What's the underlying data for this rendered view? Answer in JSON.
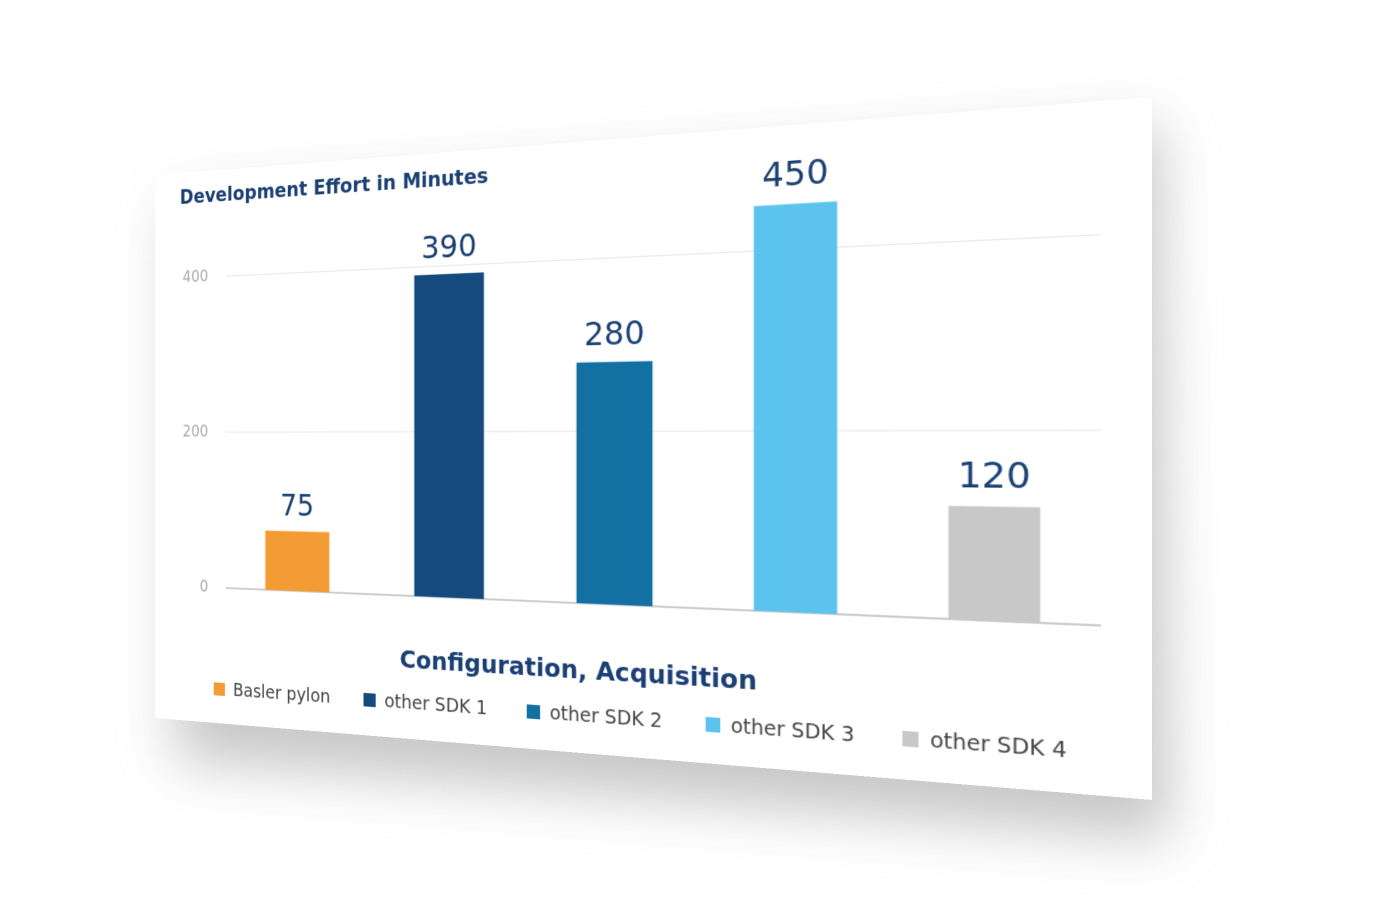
{
  "chart_data": {
    "type": "bar",
    "title": "Development Effort in Minutes",
    "x_label": "Configuration, Acquisition",
    "ylim": [
      0,
      480
    ],
    "yticks": [
      0,
      200,
      400
    ],
    "grid": true,
    "series": [
      {
        "name": "Basler pylon",
        "color": "#f39c33",
        "values": [
          75
        ]
      },
      {
        "name": "other SDK 1",
        "color": "#154a7e",
        "values": [
          390
        ]
      },
      {
        "name": "other SDK 2",
        "color": "#1270a3",
        "values": [
          280
        ]
      },
      {
        "name": "other SDK 3",
        "color": "#5bc3ec",
        "values": [
          450
        ]
      },
      {
        "name": "other SDK 4",
        "color": "#c8c8c8",
        "values": [
          120
        ]
      }
    ]
  }
}
